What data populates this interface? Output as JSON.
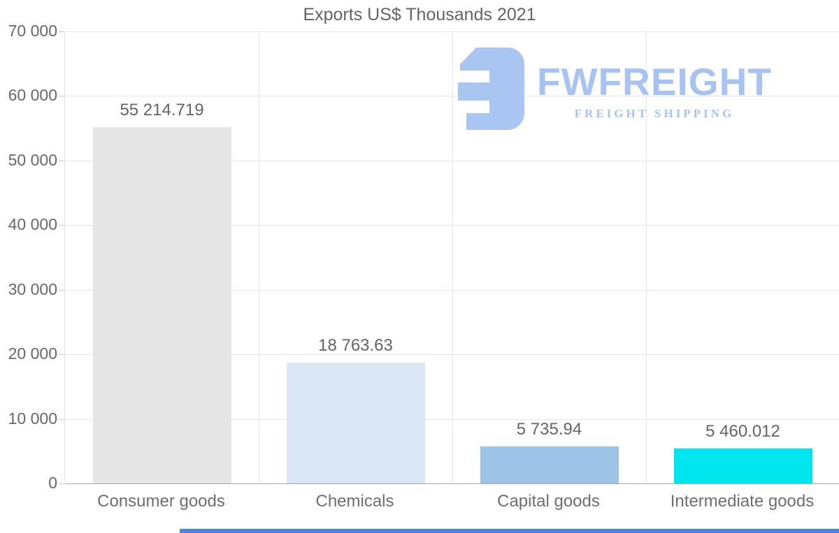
{
  "title": "Exports US$ Thousands 2021",
  "logo": {
    "brand": "FWFREIGHT",
    "tagline": "FREIGHT SHIPPING",
    "color": "#a7c3f1"
  },
  "chart_data": {
    "type": "bar",
    "title": "Exports US$ Thousands 2021",
    "categories": [
      "Consumer goods",
      "Chemicals",
      "Capital goods",
      "Intermediate goods"
    ],
    "values": [
      55214.719,
      18763.63,
      5735.94,
      5460.012
    ],
    "value_labels": [
      "55 214.719",
      "18 763.63",
      "5 735.94",
      "5 460.012"
    ],
    "bar_colors": [
      "#e6e6e6",
      "#d9e7f6",
      "#9dc3e6",
      "#00e6ef"
    ],
    "xlabel": "",
    "ylabel": "",
    "ylim": [
      0,
      70000
    ],
    "ytick_step": 10000,
    "ytick_labels": [
      "0",
      "10 000",
      "20 000",
      "30 000",
      "40 000",
      "50 000",
      "60 000",
      "70 000"
    ],
    "grid": true,
    "legend": "none"
  },
  "colors": {
    "background": "#ffffff",
    "text": "#666666",
    "gridline": "#e5e5e5",
    "axis_line": "#a8a8a8",
    "bottom_accent": "#4a86e4"
  }
}
